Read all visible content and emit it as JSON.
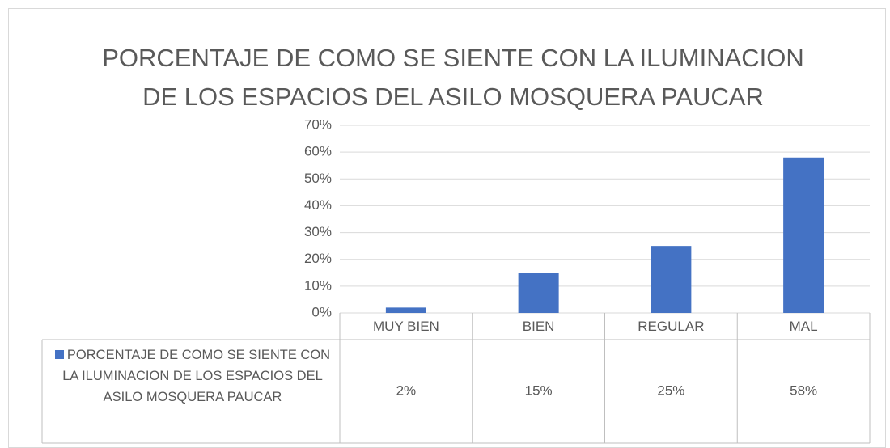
{
  "chart_data": {
    "type": "bar",
    "title": "PORCENTAJE DE COMO SE SIENTE CON LA ILUMINACION DE LOS ESPACIOS DEL ASILO MOSQUERA PAUCAR",
    "categories": [
      "MUY BIEN",
      "BIEN",
      "REGULAR",
      "MAL"
    ],
    "series": [
      {
        "name": "PORCENTAJE DE COMO SE SIENTE CON LA ILUMINACION DE LOS ESPACIOS DEL ASILO MOSQUERA PAUCAR",
        "color": "#4472c4",
        "values": [
          2,
          15,
          25,
          58
        ],
        "value_labels": [
          "2%",
          "15%",
          "25%",
          "58%"
        ]
      }
    ],
    "ylim": [
      0,
      70
    ],
    "yticks": [
      {
        "value": 0,
        "label": "0%"
      },
      {
        "value": 10,
        "label": "10%"
      },
      {
        "value": 20,
        "label": "20%"
      },
      {
        "value": 30,
        "label": "30%"
      },
      {
        "value": 40,
        "label": "40%"
      },
      {
        "value": 50,
        "label": "50%"
      },
      {
        "value": 60,
        "label": "60%"
      },
      {
        "value": 70,
        "label": "70%"
      }
    ],
    "grid": true
  }
}
